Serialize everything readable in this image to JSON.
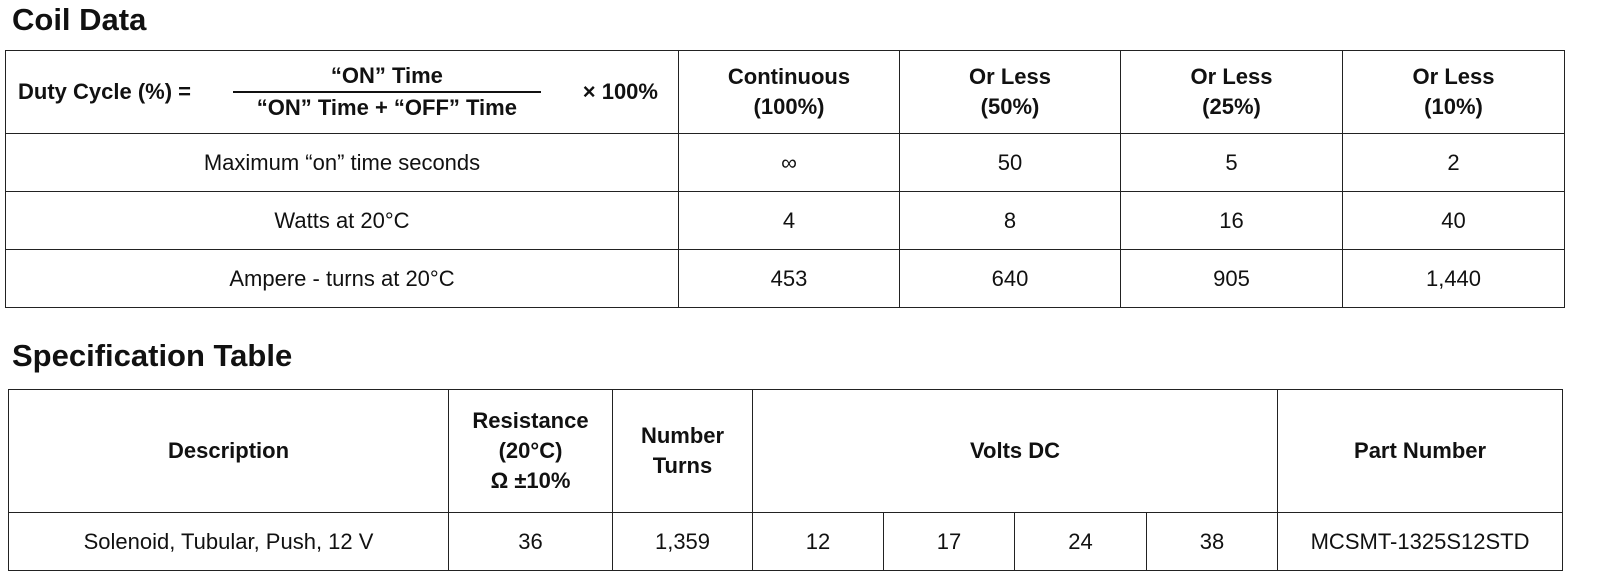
{
  "coil_data": {
    "title": "Coil Data",
    "formula": {
      "label": "Duty Cycle (%) =",
      "numerator": "“ON” Time",
      "denominator": "“ON” Time + “OFF” Time",
      "multiplier": "× 100%"
    },
    "columns": [
      [
        "Continuous",
        "(100%)"
      ],
      [
        "Or Less",
        "(50%)"
      ],
      [
        "Or Less",
        "(25%)"
      ],
      [
        "Or Less",
        "(10%)"
      ]
    ],
    "rows": [
      {
        "label": "Maximum “on” time seconds",
        "values": [
          "∞",
          "50",
          "5",
          "2"
        ]
      },
      {
        "label": "Watts at 20°C",
        "values": [
          "4",
          "8",
          "16",
          "40"
        ]
      },
      {
        "label": "Ampere - turns at 20°C",
        "values": [
          "453",
          "640",
          "905",
          "1,440"
        ]
      }
    ]
  },
  "specification_table": {
    "title": "Specification Table",
    "headers": {
      "description": "Description",
      "resistance": [
        "Resistance",
        "(20°C)",
        "Ω ±10%"
      ],
      "number_turns": [
        "Number",
        "Turns"
      ],
      "volts_dc": "Volts DC",
      "part_number": "Part Number"
    },
    "rows": [
      {
        "description": "Solenoid, Tubular, Push, 12 V",
        "resistance": "36",
        "number_turns": "1,359",
        "volts_dc": [
          "12",
          "17",
          "24",
          "38"
        ],
        "part_number": "MCSMT-1325S12STD"
      }
    ]
  }
}
